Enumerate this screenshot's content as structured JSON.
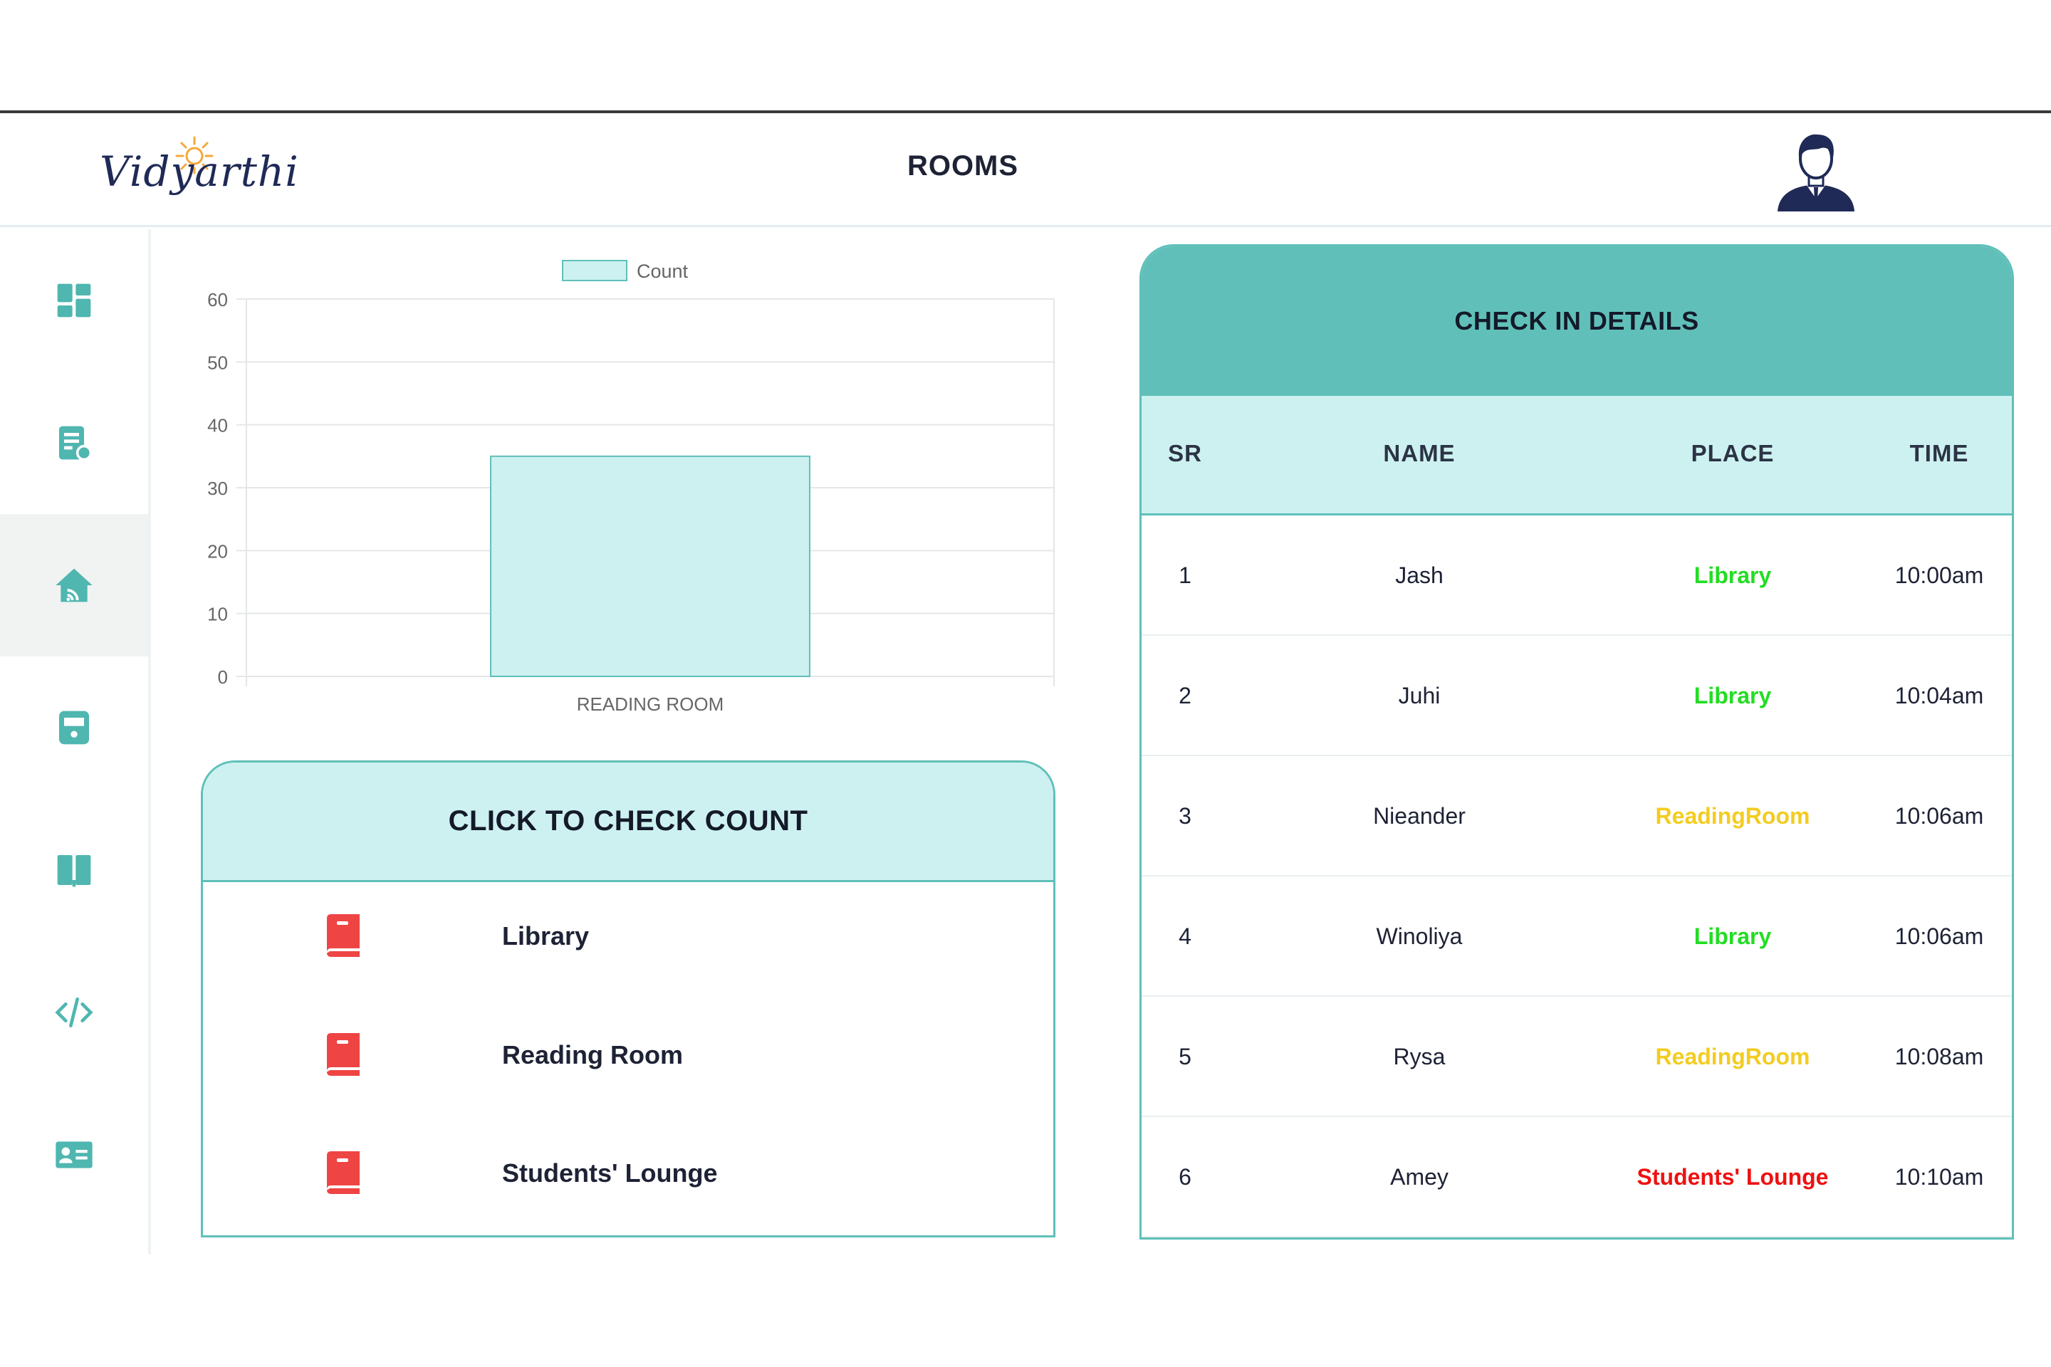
{
  "header": {
    "logo_text": "Vidyarthi",
    "title": "ROOMS"
  },
  "sidebar": {
    "items": [
      {
        "icon": "dashboard-icon",
        "active": false
      },
      {
        "icon": "document-icon",
        "active": false
      },
      {
        "icon": "home-wifi-icon",
        "active": true
      },
      {
        "icon": "train-icon",
        "active": false
      },
      {
        "icon": "book-open-icon",
        "active": false
      },
      {
        "icon": "code-icon",
        "active": false
      },
      {
        "icon": "id-card-icon",
        "active": false
      }
    ]
  },
  "chart_data": {
    "type": "bar",
    "categories": [
      "READING ROOM"
    ],
    "series": [
      {
        "name": "Count",
        "values": [
          35
        ]
      }
    ],
    "ylim": [
      0,
      60
    ],
    "yticks": [
      0,
      10,
      20,
      30,
      40,
      50,
      60
    ],
    "legend": "top",
    "grid": true,
    "bar_fill": "#cdf1f0",
    "bar_stroke": "#5fc0b9"
  },
  "count_card": {
    "title": "CLICK TO CHECK COUNT",
    "items": [
      {
        "label": "Library"
      },
      {
        "label": "Reading Room"
      },
      {
        "label": "Students' Lounge"
      }
    ],
    "icon_color": "#ef4444"
  },
  "checkin": {
    "title": "CHECK IN DETAILS",
    "columns": [
      "SR",
      "NAME",
      "PLACE",
      "TIME"
    ],
    "rows": [
      {
        "sr": "1",
        "name": "Jash",
        "place": "Library",
        "time": "10:00am",
        "color": "#22dd22"
      },
      {
        "sr": "2",
        "name": "Juhi",
        "place": "Library",
        "time": "10:04am",
        "color": "#22dd22"
      },
      {
        "sr": "3",
        "name": "Nieander",
        "place": "ReadingRoom",
        "time": "10:06am",
        "color": "#f3cc1f"
      },
      {
        "sr": "4",
        "name": "Winoliya",
        "place": "Library",
        "time": "10:06am",
        "color": "#22dd22"
      },
      {
        "sr": "5",
        "name": "Rysa",
        "place": "ReadingRoom",
        "time": "10:08am",
        "color": "#f3cc1f"
      },
      {
        "sr": "6",
        "name": "Amey",
        "place": "Students' Lounge",
        "time": "10:10am",
        "color": "#ee1111"
      }
    ]
  },
  "colors": {
    "accent": "#5fc0b9",
    "accent_light": "#cdf1f0",
    "sidebar_icon": "#4fb6b0"
  }
}
